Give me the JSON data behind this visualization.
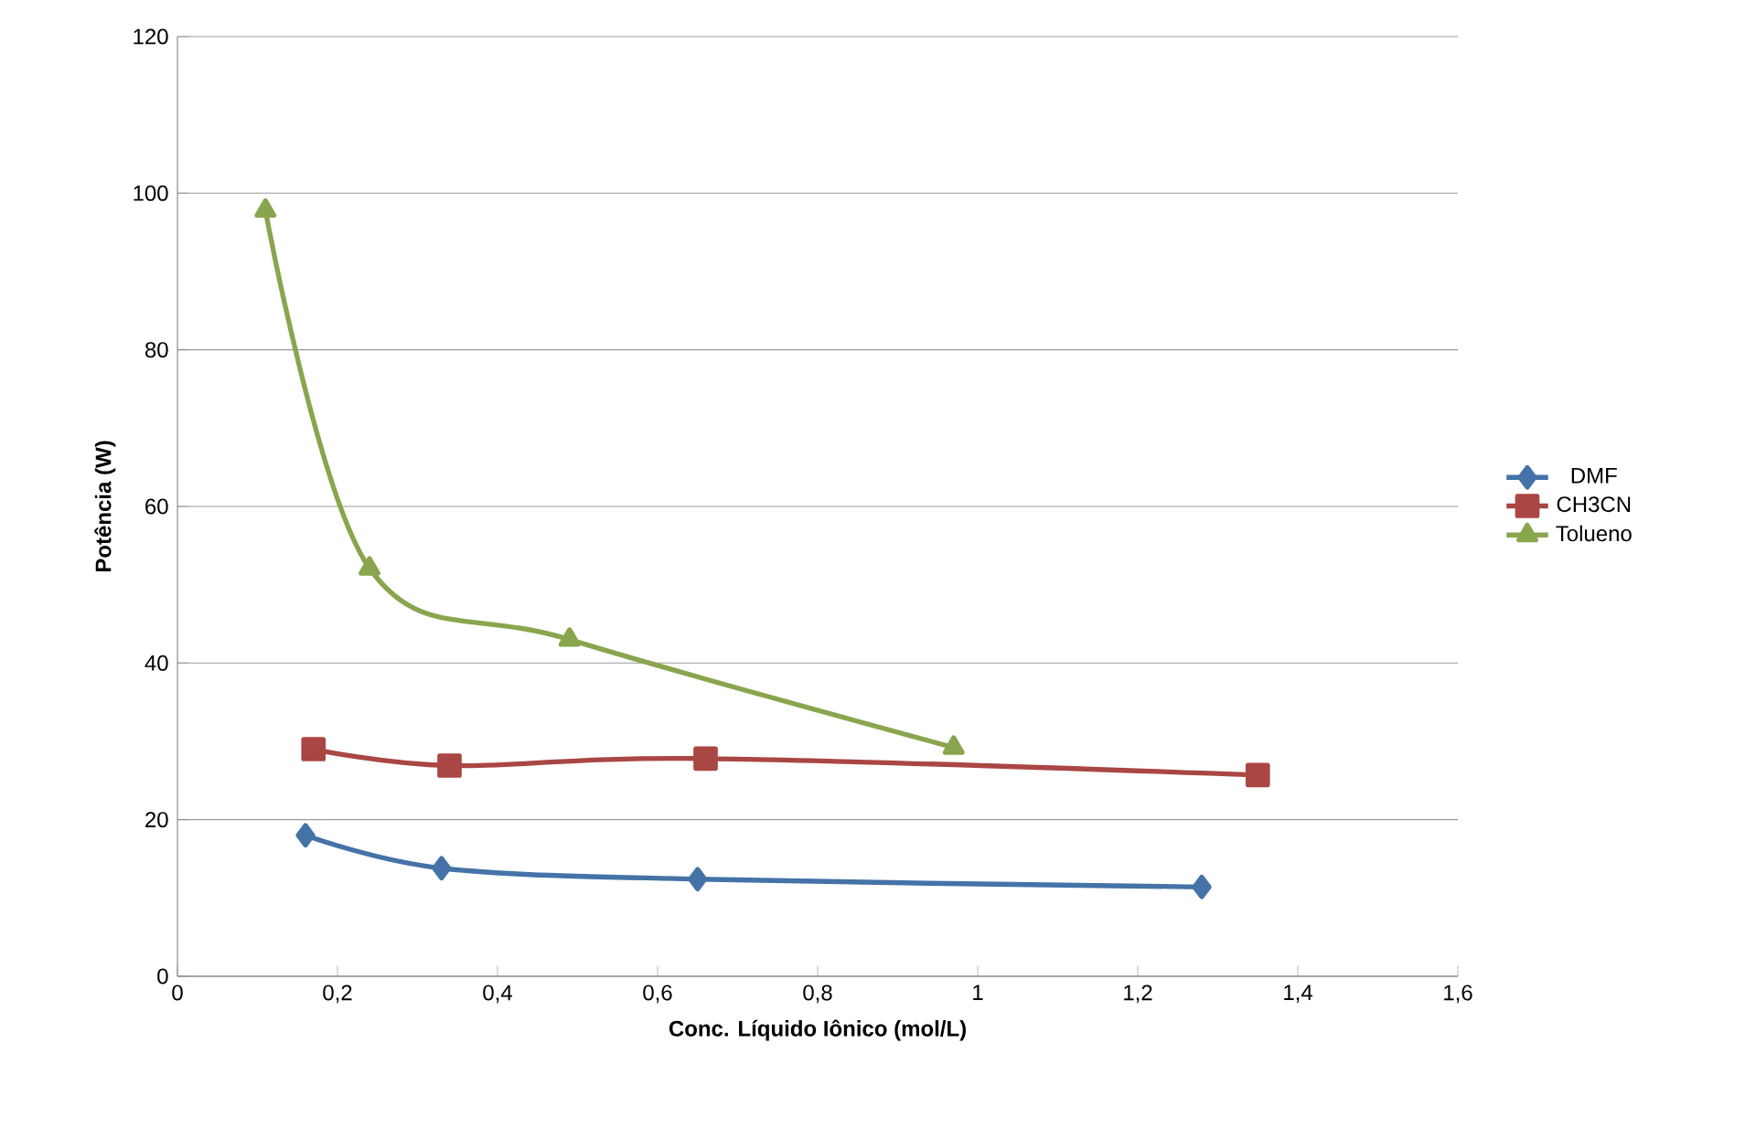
{
  "chart_data": {
    "type": "line",
    "xlabel": "Conc. Líquido Iônico (mol/L)",
    "ylabel": "Potência (W)",
    "xlim": [
      0,
      1.6
    ],
    "ylim": [
      0,
      120
    ],
    "xticks": [
      0,
      {
        "value": 0.2,
        "label": "0,2"
      },
      {
        "value": 0.4,
        "label": "0,4"
      },
      {
        "value": 0.6,
        "label": "0,6"
      },
      {
        "value": 0.8,
        "label": "0,8"
      },
      1,
      {
        "value": 1.2,
        "label": "1,2"
      },
      {
        "value": 1.4,
        "label": "1,4"
      },
      {
        "value": 1.6,
        "label": "1,6"
      }
    ],
    "yticks": [
      0,
      20,
      40,
      60,
      80,
      100,
      120
    ],
    "grid": "y",
    "legend": "right",
    "series": [
      {
        "name": "DMF",
        "color": "#4572a7",
        "marker": "diamond",
        "x": [
          0.16,
          0.33,
          0.65,
          1.28
        ],
        "values": [
          18.0,
          13.8,
          12.4,
          11.4
        ]
      },
      {
        "name": "CH3CN",
        "color": "#aa4643",
        "marker": "square",
        "x": [
          0.17,
          0.34,
          0.66,
          1.35
        ],
        "values": [
          29.0,
          26.9,
          27.8,
          25.7
        ]
      },
      {
        "name": "Tolueno",
        "color": "#89a54e",
        "marker": "triangle",
        "x": [
          0.11,
          0.24,
          0.49,
          0.97
        ],
        "values": [
          97.8,
          52.1,
          43.0,
          29.2
        ]
      }
    ]
  }
}
